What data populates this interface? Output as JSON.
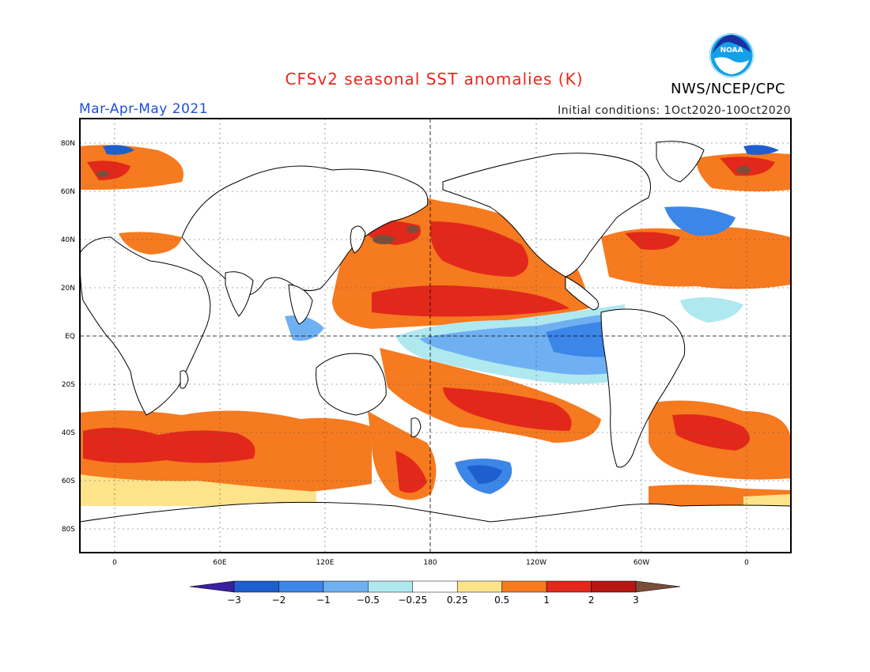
{
  "header": {
    "title": "CFSv2 seasonal SST anomalies (K)",
    "agency": "NWS/NCEP/CPC",
    "season": "Mar-Apr-May 2021",
    "initial_conditions": "Initial conditions: 1Oct2020-10Oct2020",
    "logo_text": "NOAA"
  },
  "map": {
    "lat_labels": [
      "80N",
      "60N",
      "40N",
      "20N",
      "EQ",
      "20S",
      "40S",
      "60S",
      "80S"
    ],
    "lon_labels": [
      "0",
      "60E",
      "120E",
      "180",
      "120W",
      "60W",
      "0"
    ]
  },
  "colorbar": {
    "labels": [
      "-3",
      "-2",
      "-1",
      "-0.5",
      "-0.25",
      "0.25",
      "0.5",
      "1",
      "2",
      "3"
    ],
    "colors": [
      "#3a1f9e",
      "#1e5fcf",
      "#3c86e8",
      "#6fb0f2",
      "#b0e8f0",
      "#ffffff",
      "#fde38a",
      "#f67a1f",
      "#e2281b",
      "#b51612",
      "#7a4e3a"
    ]
  }
}
